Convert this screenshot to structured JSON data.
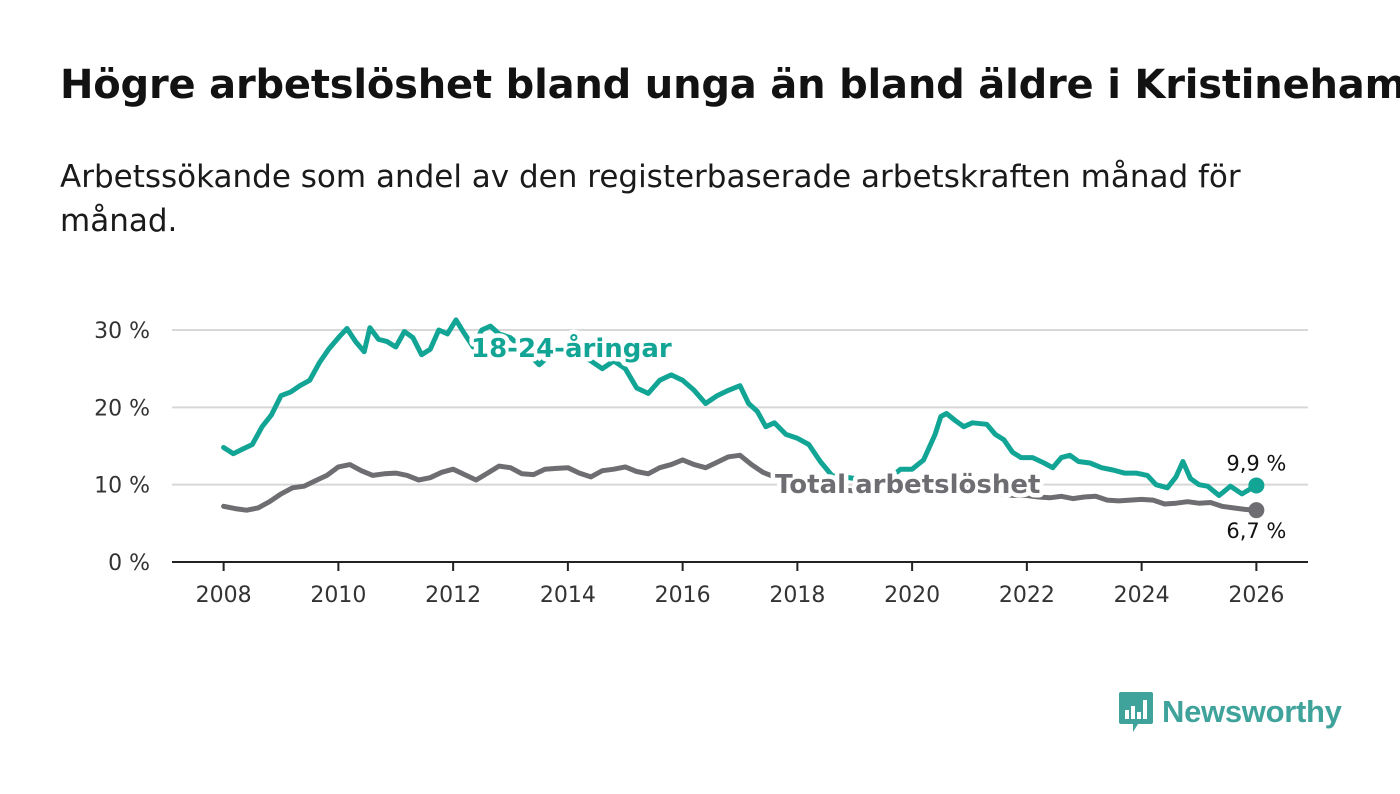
{
  "title": "Högre arbetslöshet bland unga än bland äldre i Kristinehamn",
  "subtitle": "Arbetssökande som andel av den registerbaserade arbetskraften månad för månad.",
  "colors": {
    "youth": "#12a595",
    "total": "#6e6e72",
    "grid": "#d8d8d8",
    "axis": "#222222",
    "brand": "#3fa39c"
  },
  "brand": {
    "name": "Newsworthy",
    "icon": "bar-chart-speech-bubble-icon"
  },
  "chart_data": {
    "type": "line",
    "title": "Högre arbetslöshet bland unga än bland äldre i Kristinehamn",
    "xlabel": "",
    "ylabel": "",
    "xlim": [
      2007.1,
      2026.9
    ],
    "ylim": [
      0,
      30
    ],
    "grid": true,
    "x_ticks": [
      2008,
      2010,
      2012,
      2014,
      2016,
      2018,
      2020,
      2022,
      2024,
      2026
    ],
    "x_tick_labels": [
      "2008",
      "2010",
      "2012",
      "2014",
      "2016",
      "2018",
      "2020",
      "2022",
      "2024",
      "2026"
    ],
    "y_ticks": [
      0,
      10,
      20,
      30
    ],
    "y_tick_labels": [
      "0 %",
      "10 %",
      "20 %",
      "30 %"
    ],
    "series": [
      {
        "name": "18-24-åringar",
        "key": "youth",
        "end_label": "9,9 %",
        "points": [
          [
            2008.0,
            14.8
          ],
          [
            2008.17,
            14.0
          ],
          [
            2008.33,
            14.6
          ],
          [
            2008.5,
            15.2
          ],
          [
            2008.67,
            17.5
          ],
          [
            2008.83,
            19.0
          ],
          [
            2009.0,
            21.5
          ],
          [
            2009.17,
            22.0
          ],
          [
            2009.33,
            22.8
          ],
          [
            2009.5,
            23.5
          ],
          [
            2009.67,
            25.8
          ],
          [
            2009.83,
            27.5
          ],
          [
            2010.0,
            29.0
          ],
          [
            2010.15,
            30.2
          ],
          [
            2010.3,
            28.5
          ],
          [
            2010.45,
            27.2
          ],
          [
            2010.55,
            30.3
          ],
          [
            2010.7,
            28.8
          ],
          [
            2010.85,
            28.5
          ],
          [
            2011.0,
            27.8
          ],
          [
            2011.15,
            29.8
          ],
          [
            2011.3,
            29.0
          ],
          [
            2011.45,
            26.8
          ],
          [
            2011.6,
            27.5
          ],
          [
            2011.75,
            30.0
          ],
          [
            2011.9,
            29.5
          ],
          [
            2012.05,
            31.3
          ],
          [
            2012.2,
            29.5
          ],
          [
            2012.35,
            27.8
          ],
          [
            2012.5,
            30.0
          ],
          [
            2012.65,
            30.5
          ],
          [
            2012.8,
            29.5
          ],
          [
            2013.0,
            29.0
          ],
          [
            2013.3,
            27.0
          ],
          [
            2013.5,
            25.5
          ],
          [
            2013.8,
            27.5
          ],
          [
            2014.0,
            28.0
          ],
          [
            2014.3,
            26.5
          ],
          [
            2014.6,
            25.0
          ],
          [
            2014.8,
            26.0
          ],
          [
            2015.0,
            25.0
          ],
          [
            2015.2,
            22.5
          ],
          [
            2015.4,
            21.8
          ],
          [
            2015.6,
            23.5
          ],
          [
            2015.8,
            24.2
          ],
          [
            2016.0,
            23.5
          ],
          [
            2016.2,
            22.2
          ],
          [
            2016.4,
            20.5
          ],
          [
            2016.6,
            21.5
          ],
          [
            2016.8,
            22.2
          ],
          [
            2017.0,
            22.8
          ],
          [
            2017.15,
            20.5
          ],
          [
            2017.3,
            19.5
          ],
          [
            2017.45,
            17.5
          ],
          [
            2017.6,
            18.0
          ],
          [
            2017.8,
            16.5
          ],
          [
            2018.0,
            16.0
          ],
          [
            2018.2,
            15.2
          ],
          [
            2018.4,
            13.0
          ],
          [
            2018.6,
            11.2
          ],
          [
            2018.8,
            11.0
          ],
          [
            2019.0,
            10.8
          ],
          [
            2019.2,
            9.8
          ],
          [
            2019.4,
            9.3
          ],
          [
            2019.6,
            10.8
          ],
          [
            2019.8,
            12.0
          ],
          [
            2020.0,
            12.0
          ],
          [
            2020.2,
            13.2
          ],
          [
            2020.4,
            16.5
          ],
          [
            2020.5,
            18.8
          ],
          [
            2020.6,
            19.2
          ],
          [
            2020.75,
            18.3
          ],
          [
            2020.9,
            17.5
          ],
          [
            2021.05,
            18.0
          ],
          [
            2021.3,
            17.8
          ],
          [
            2021.45,
            16.5
          ],
          [
            2021.6,
            15.8
          ],
          [
            2021.75,
            14.2
          ],
          [
            2021.9,
            13.5
          ],
          [
            2022.1,
            13.5
          ],
          [
            2022.3,
            12.8
          ],
          [
            2022.45,
            12.2
          ],
          [
            2022.6,
            13.5
          ],
          [
            2022.75,
            13.8
          ],
          [
            2022.9,
            13.0
          ],
          [
            2023.1,
            12.8
          ],
          [
            2023.3,
            12.2
          ],
          [
            2023.5,
            11.9
          ],
          [
            2023.7,
            11.5
          ],
          [
            2023.9,
            11.5
          ],
          [
            2024.1,
            11.2
          ],
          [
            2024.25,
            10.0
          ],
          [
            2024.45,
            9.6
          ],
          [
            2024.6,
            11.0
          ],
          [
            2024.72,
            13.0
          ],
          [
            2024.85,
            10.8
          ],
          [
            2025.0,
            10.0
          ],
          [
            2025.15,
            9.8
          ],
          [
            2025.35,
            8.6
          ],
          [
            2025.55,
            9.8
          ],
          [
            2025.75,
            8.8
          ],
          [
            2026.0,
            9.9
          ]
        ]
      },
      {
        "name": "Total arbetslöshet",
        "key": "total",
        "end_label": "6,7 %",
        "points": [
          [
            2008.0,
            7.2
          ],
          [
            2008.2,
            6.9
          ],
          [
            2008.4,
            6.7
          ],
          [
            2008.6,
            7.0
          ],
          [
            2008.8,
            7.8
          ],
          [
            2009.0,
            8.8
          ],
          [
            2009.2,
            9.6
          ],
          [
            2009.4,
            9.8
          ],
          [
            2009.6,
            10.5
          ],
          [
            2009.8,
            11.2
          ],
          [
            2010.0,
            12.3
          ],
          [
            2010.2,
            12.6
          ],
          [
            2010.4,
            11.8
          ],
          [
            2010.6,
            11.2
          ],
          [
            2010.8,
            11.4
          ],
          [
            2011.0,
            11.5
          ],
          [
            2011.2,
            11.2
          ],
          [
            2011.4,
            10.6
          ],
          [
            2011.6,
            10.9
          ],
          [
            2011.8,
            11.6
          ],
          [
            2012.0,
            12.0
          ],
          [
            2012.2,
            11.3
          ],
          [
            2012.4,
            10.6
          ],
          [
            2012.6,
            11.5
          ],
          [
            2012.8,
            12.4
          ],
          [
            2013.0,
            12.2
          ],
          [
            2013.2,
            11.4
          ],
          [
            2013.4,
            11.3
          ],
          [
            2013.6,
            12.0
          ],
          [
            2013.8,
            12.1
          ],
          [
            2014.0,
            12.2
          ],
          [
            2014.2,
            11.5
          ],
          [
            2014.4,
            11.0
          ],
          [
            2014.6,
            11.8
          ],
          [
            2014.8,
            12.0
          ],
          [
            2015.0,
            12.3
          ],
          [
            2015.2,
            11.7
          ],
          [
            2015.4,
            11.4
          ],
          [
            2015.6,
            12.2
          ],
          [
            2015.8,
            12.6
          ],
          [
            2016.0,
            13.2
          ],
          [
            2016.2,
            12.6
          ],
          [
            2016.4,
            12.2
          ],
          [
            2016.6,
            12.9
          ],
          [
            2016.8,
            13.6
          ],
          [
            2017.0,
            13.8
          ],
          [
            2017.2,
            12.6
          ],
          [
            2017.4,
            11.6
          ],
          [
            2017.6,
            11.0
          ],
          [
            2017.8,
            10.6
          ],
          [
            2018.0,
            10.4
          ],
          [
            2018.2,
            10.0
          ],
          [
            2018.4,
            9.6
          ],
          [
            2018.6,
            9.4
          ],
          [
            2018.8,
            9.3
          ],
          [
            2019.0,
            9.2
          ],
          [
            2019.2,
            9.1
          ],
          [
            2019.4,
            8.9
          ],
          [
            2019.6,
            9.2
          ],
          [
            2019.8,
            9.4
          ],
          [
            2020.0,
            9.8
          ],
          [
            2020.2,
            10.0
          ],
          [
            2020.4,
            10.4
          ],
          [
            2020.6,
            10.1
          ],
          [
            2020.8,
            9.8
          ],
          [
            2021.0,
            9.6
          ],
          [
            2021.2,
            9.3
          ],
          [
            2021.4,
            8.9
          ],
          [
            2021.6,
            8.7
          ],
          [
            2021.8,
            8.6
          ],
          [
            2022.0,
            8.6
          ],
          [
            2022.2,
            8.4
          ],
          [
            2022.4,
            8.3
          ],
          [
            2022.6,
            8.5
          ],
          [
            2022.8,
            8.2
          ],
          [
            2023.0,
            8.4
          ],
          [
            2023.2,
            8.5
          ],
          [
            2023.4,
            8.0
          ],
          [
            2023.6,
            7.9
          ],
          [
            2023.8,
            8.0
          ],
          [
            2024.0,
            8.1
          ],
          [
            2024.2,
            8.0
          ],
          [
            2024.4,
            7.5
          ],
          [
            2024.6,
            7.6
          ],
          [
            2024.8,
            7.8
          ],
          [
            2025.0,
            7.6
          ],
          [
            2025.2,
            7.7
          ],
          [
            2025.4,
            7.2
          ],
          [
            2025.6,
            7.0
          ],
          [
            2025.8,
            6.8
          ],
          [
            2026.0,
            6.7
          ]
        ]
      }
    ]
  }
}
